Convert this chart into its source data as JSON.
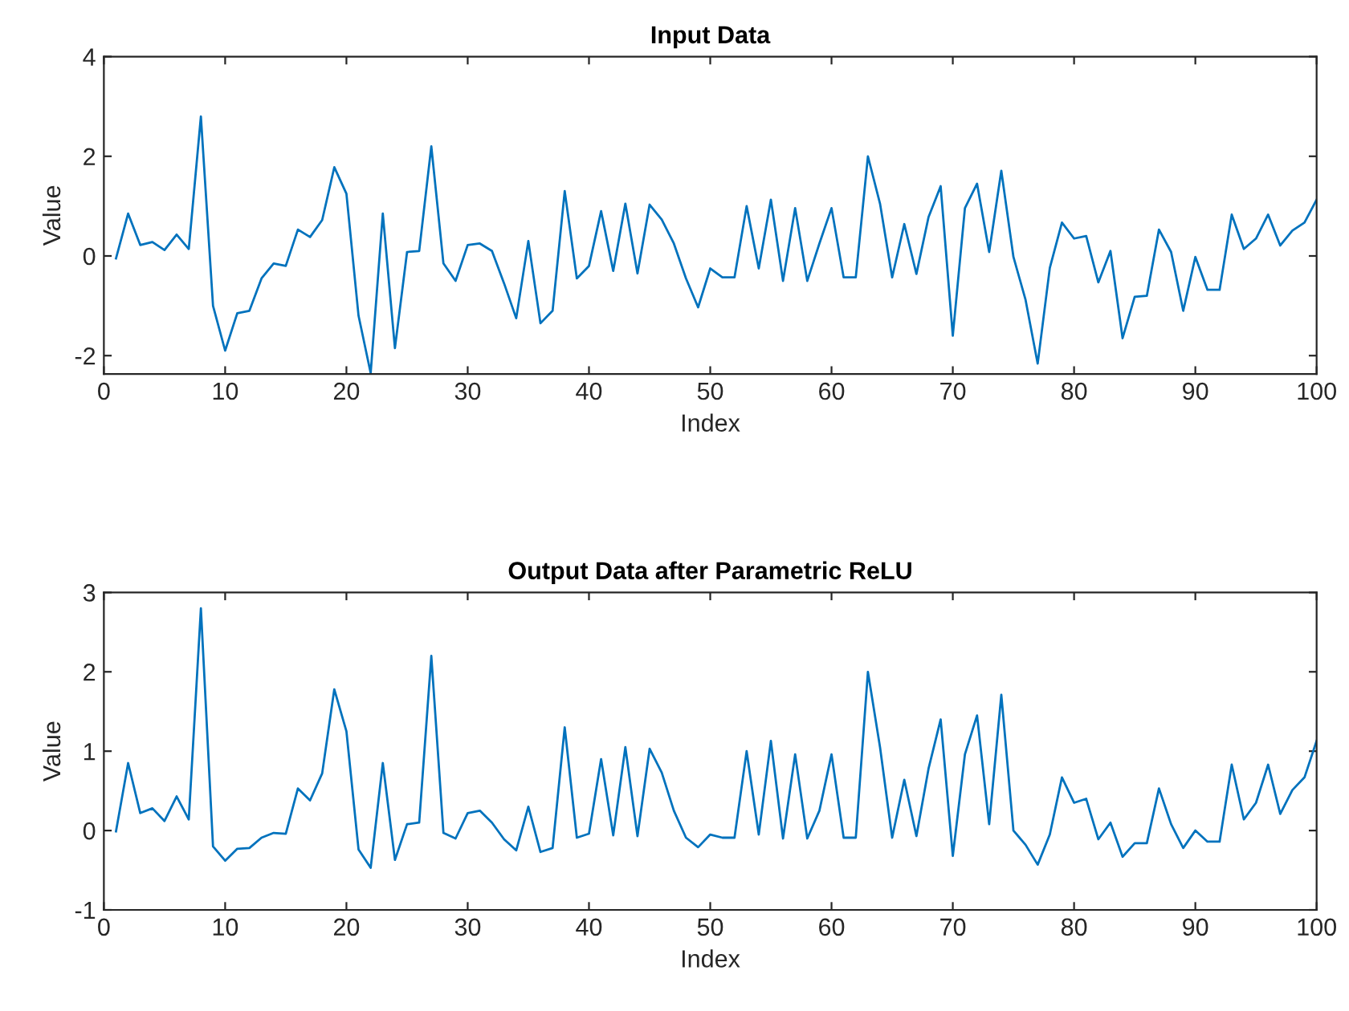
{
  "chart_data": [
    {
      "type": "line",
      "title": "Input Data",
      "xlabel": "Index",
      "ylabel": "Value",
      "grid": false,
      "legend": false,
      "marker": "none",
      "line_style": "solid",
      "x": [
        1,
        2,
        3,
        4,
        5,
        6,
        7,
        8,
        9,
        10,
        11,
        12,
        13,
        14,
        15,
        16,
        17,
        18,
        19,
        20,
        21,
        22,
        23,
        24,
        25,
        26,
        27,
        28,
        29,
        30,
        31,
        32,
        33,
        34,
        35,
        36,
        37,
        38,
        39,
        40,
        41,
        42,
        43,
        44,
        45,
        46,
        47,
        48,
        49,
        50,
        51,
        52,
        53,
        54,
        55,
        56,
        57,
        58,
        59,
        60,
        61,
        62,
        63,
        64,
        65,
        66,
        67,
        68,
        69,
        70,
        71,
        72,
        73,
        74,
        75,
        76,
        77,
        78,
        79,
        80,
        81,
        82,
        83,
        84,
        85,
        86,
        87,
        88,
        89,
        90,
        91,
        92,
        93,
        94,
        95,
        96,
        97,
        98,
        99,
        100
      ],
      "series": [
        {
          "color": "#0072bd",
          "values": [
            -0.05,
            0.85,
            0.22,
            0.28,
            0.12,
            0.43,
            0.14,
            2.8,
            -1.0,
            -1.9,
            -1.15,
            -1.1,
            -0.45,
            -0.15,
            -0.2,
            0.53,
            0.38,
            0.72,
            1.78,
            1.25,
            -1.2,
            -2.35,
            0.85,
            -1.85,
            0.08,
            0.1,
            2.2,
            -0.15,
            -0.5,
            0.22,
            0.25,
            0.1,
            -0.55,
            -1.25,
            0.3,
            -1.35,
            -1.1,
            1.3,
            -0.45,
            -0.2,
            0.9,
            -0.3,
            1.05,
            -0.35,
            1.03,
            0.73,
            0.25,
            -0.45,
            -1.03,
            -0.25,
            -0.43,
            -0.43,
            1.0,
            -0.25,
            1.13,
            -0.5,
            0.96,
            -0.5,
            0.25,
            0.96,
            -0.43,
            -0.43,
            2.0,
            1.05,
            -0.43,
            0.64,
            -0.36,
            0.78,
            1.4,
            -1.6,
            0.96,
            1.45,
            0.08,
            1.71,
            -0.02,
            -0.88,
            -2.16,
            -0.24,
            0.67,
            0.35,
            0.4,
            -0.53,
            0.1,
            -1.65,
            -0.82,
            -0.8,
            0.53,
            0.08,
            -1.1,
            -0.02,
            -0.68,
            -0.68,
            0.83,
            0.14,
            0.35,
            0.83,
            0.21,
            0.51,
            0.67,
            1.13
          ]
        }
      ],
      "xlim": [
        0,
        100
      ],
      "xticks": [
        0,
        10,
        20,
        30,
        40,
        50,
        60,
        70,
        80,
        90,
        100
      ],
      "ylim": [
        -2.37,
        4
      ],
      "yticks": [
        -2,
        0,
        2,
        4
      ]
    },
    {
      "type": "line",
      "title": "Output Data after Parametric ReLU",
      "xlabel": "Index",
      "ylabel": "Value",
      "grid": false,
      "legend": false,
      "marker": "none",
      "line_style": "solid",
      "x": [
        1,
        2,
        3,
        4,
        5,
        6,
        7,
        8,
        9,
        10,
        11,
        12,
        13,
        14,
        15,
        16,
        17,
        18,
        19,
        20,
        21,
        22,
        23,
        24,
        25,
        26,
        27,
        28,
        29,
        30,
        31,
        32,
        33,
        34,
        35,
        36,
        37,
        38,
        39,
        40,
        41,
        42,
        43,
        44,
        45,
        46,
        47,
        48,
        49,
        50,
        51,
        52,
        53,
        54,
        55,
        56,
        57,
        58,
        59,
        60,
        61,
        62,
        63,
        64,
        65,
        66,
        67,
        68,
        69,
        70,
        71,
        72,
        73,
        74,
        75,
        76,
        77,
        78,
        79,
        80,
        81,
        82,
        83,
        84,
        85,
        86,
        87,
        88,
        89,
        90,
        91,
        92,
        93,
        94,
        95,
        96,
        97,
        98,
        99,
        100
      ],
      "series": [
        {
          "color": "#0072bd",
          "values": [
            -0.01,
            0.85,
            0.22,
            0.28,
            0.12,
            0.43,
            0.14,
            2.8,
            -0.2,
            -0.38,
            -0.23,
            -0.22,
            -0.09,
            -0.03,
            -0.04,
            0.53,
            0.38,
            0.72,
            1.78,
            1.25,
            -0.24,
            -0.47,
            0.85,
            -0.37,
            0.08,
            0.1,
            2.2,
            -0.03,
            -0.1,
            0.22,
            0.25,
            0.1,
            -0.11,
            -0.25,
            0.3,
            -0.27,
            -0.22,
            1.3,
            -0.09,
            -0.04,
            0.9,
            -0.06,
            1.05,
            -0.07,
            1.03,
            0.73,
            0.25,
            -0.09,
            -0.21,
            -0.05,
            -0.09,
            -0.09,
            1.0,
            -0.05,
            1.13,
            -0.1,
            0.96,
            -0.1,
            0.25,
            0.96,
            -0.09,
            -0.09,
            2.0,
            1.05,
            -0.09,
            0.64,
            -0.07,
            0.78,
            1.4,
            -0.32,
            0.96,
            1.45,
            0.08,
            1.71,
            0.0,
            -0.18,
            -0.43,
            -0.05,
            0.67,
            0.35,
            0.4,
            -0.11,
            0.1,
            -0.33,
            -0.16,
            -0.16,
            0.53,
            0.08,
            -0.22,
            0.0,
            -0.14,
            -0.14,
            0.83,
            0.14,
            0.35,
            0.83,
            0.21,
            0.51,
            0.67,
            1.13
          ]
        }
      ],
      "xlim": [
        0,
        100
      ],
      "xticks": [
        0,
        10,
        20,
        30,
        40,
        50,
        60,
        70,
        80,
        90,
        100
      ],
      "ylim": [
        -1,
        3
      ],
      "yticks": [
        -1,
        0,
        1,
        2,
        3
      ]
    }
  ]
}
